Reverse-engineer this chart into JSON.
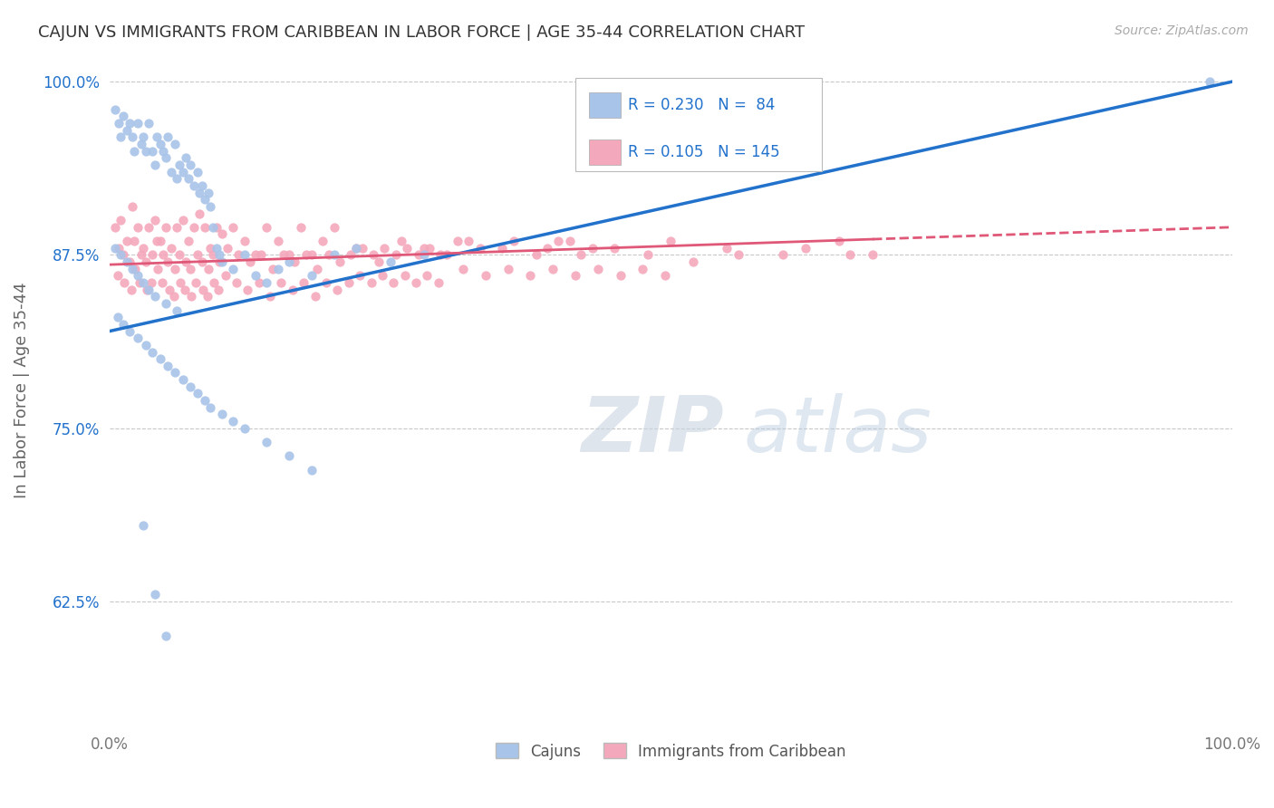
{
  "title": "CAJUN VS IMMIGRANTS FROM CARIBBEAN IN LABOR FORCE | AGE 35-44 CORRELATION CHART",
  "source": "Source: ZipAtlas.com",
  "ylabel": "In Labor Force | Age 35-44",
  "xlim": [
    0.0,
    1.0
  ],
  "ylim": [
    0.535,
    1.02
  ],
  "yticks": [
    0.625,
    0.75,
    0.875,
    1.0
  ],
  "ytick_labels": [
    "62.5%",
    "75.0%",
    "87.5%",
    "100.0%"
  ],
  "legend_R1": "0.230",
  "legend_N1": "84",
  "legend_R2": "0.105",
  "legend_N2": "145",
  "cajun_color": "#a8c4e8",
  "caribbean_color": "#f4a8bc",
  "cajun_line_color": "#2272cc",
  "caribbean_line_color": "#e05878",
  "caribbean_line_dash": true,
  "background_color": "#ffffff",
  "grid_color": "#c8c8c8",
  "watermark_text": "ZIPatlas",
  "cajun_label": "Cajuns",
  "caribbean_label": "Immigrants from Caribbean",
  "cajun_line_x0": 0.0,
  "cajun_line_y0": 0.82,
  "cajun_line_x1": 1.0,
  "cajun_line_y1": 1.0,
  "carib_line_x0": 0.0,
  "carib_line_y0": 0.868,
  "carib_line_x1": 1.0,
  "carib_line_y1": 0.895,
  "cajun_points_x": [
    0.005,
    0.008,
    0.01,
    0.012,
    0.015,
    0.018,
    0.02,
    0.022,
    0.025,
    0.028,
    0.03,
    0.032,
    0.035,
    0.038,
    0.04,
    0.042,
    0.045,
    0.048,
    0.05,
    0.052,
    0.055,
    0.058,
    0.06,
    0.062,
    0.065,
    0.068,
    0.07,
    0.072,
    0.075,
    0.078,
    0.08,
    0.082,
    0.085,
    0.088,
    0.09,
    0.092,
    0.095,
    0.098,
    0.1,
    0.11,
    0.12,
    0.13,
    0.14,
    0.15,
    0.16,
    0.18,
    0.2,
    0.22,
    0.25,
    0.28,
    0.005,
    0.01,
    0.015,
    0.02,
    0.025,
    0.03,
    0.035,
    0.04,
    0.05,
    0.06,
    0.007,
    0.012,
    0.018,
    0.025,
    0.032,
    0.038,
    0.045,
    0.052,
    0.058,
    0.065,
    0.072,
    0.078,
    0.085,
    0.09,
    0.1,
    0.11,
    0.12,
    0.14,
    0.16,
    0.18,
    0.03,
    0.04,
    0.05,
    0.98
  ],
  "cajun_points_y": [
    0.98,
    0.97,
    0.96,
    0.975,
    0.965,
    0.97,
    0.96,
    0.95,
    0.97,
    0.955,
    0.96,
    0.95,
    0.97,
    0.95,
    0.94,
    0.96,
    0.955,
    0.95,
    0.945,
    0.96,
    0.935,
    0.955,
    0.93,
    0.94,
    0.935,
    0.945,
    0.93,
    0.94,
    0.925,
    0.935,
    0.92,
    0.925,
    0.915,
    0.92,
    0.91,
    0.895,
    0.88,
    0.875,
    0.87,
    0.865,
    0.875,
    0.86,
    0.855,
    0.865,
    0.87,
    0.86,
    0.875,
    0.88,
    0.87,
    0.875,
    0.88,
    0.875,
    0.87,
    0.865,
    0.86,
    0.855,
    0.85,
    0.845,
    0.84,
    0.835,
    0.83,
    0.825,
    0.82,
    0.815,
    0.81,
    0.805,
    0.8,
    0.795,
    0.79,
    0.785,
    0.78,
    0.775,
    0.77,
    0.765,
    0.76,
    0.755,
    0.75,
    0.74,
    0.73,
    0.72,
    0.68,
    0.63,
    0.6,
    1.0
  ],
  "carib_points_x": [
    0.005,
    0.01,
    0.015,
    0.02,
    0.025,
    0.03,
    0.035,
    0.04,
    0.045,
    0.05,
    0.055,
    0.06,
    0.065,
    0.07,
    0.075,
    0.08,
    0.085,
    0.09,
    0.095,
    0.1,
    0.11,
    0.12,
    0.13,
    0.14,
    0.15,
    0.16,
    0.17,
    0.18,
    0.19,
    0.2,
    0.22,
    0.24,
    0.26,
    0.28,
    0.3,
    0.32,
    0.35,
    0.38,
    0.4,
    0.42,
    0.45,
    0.48,
    0.5,
    0.55,
    0.6,
    0.65,
    0.68,
    0.008,
    0.012,
    0.018,
    0.022,
    0.028,
    0.032,
    0.038,
    0.042,
    0.048,
    0.052,
    0.058,
    0.062,
    0.068,
    0.072,
    0.078,
    0.082,
    0.088,
    0.092,
    0.098,
    0.105,
    0.115,
    0.125,
    0.135,
    0.145,
    0.155,
    0.165,
    0.175,
    0.185,
    0.195,
    0.205,
    0.215,
    0.225,
    0.235,
    0.245,
    0.255,
    0.265,
    0.275,
    0.285,
    0.295,
    0.31,
    0.33,
    0.36,
    0.39,
    0.41,
    0.43,
    0.007,
    0.013,
    0.019,
    0.023,
    0.027,
    0.033,
    0.037,
    0.043,
    0.047,
    0.053,
    0.057,
    0.063,
    0.067,
    0.073,
    0.077,
    0.083,
    0.087,
    0.093,
    0.097,
    0.103,
    0.113,
    0.123,
    0.133,
    0.143,
    0.153,
    0.163,
    0.173,
    0.183,
    0.193,
    0.203,
    0.213,
    0.223,
    0.233,
    0.243,
    0.253,
    0.263,
    0.273,
    0.283,
    0.293,
    0.315,
    0.335,
    0.355,
    0.375,
    0.395,
    0.415,
    0.435,
    0.455,
    0.475,
    0.495,
    0.52,
    0.56,
    0.62,
    0.66
  ],
  "carib_points_y": [
    0.895,
    0.9,
    0.885,
    0.91,
    0.895,
    0.88,
    0.895,
    0.9,
    0.885,
    0.895,
    0.88,
    0.895,
    0.9,
    0.885,
    0.895,
    0.905,
    0.895,
    0.88,
    0.895,
    0.89,
    0.895,
    0.885,
    0.875,
    0.895,
    0.885,
    0.875,
    0.895,
    0.875,
    0.885,
    0.895,
    0.88,
    0.87,
    0.885,
    0.88,
    0.875,
    0.885,
    0.88,
    0.875,
    0.885,
    0.875,
    0.88,
    0.875,
    0.885,
    0.88,
    0.875,
    0.885,
    0.875,
    0.88,
    0.875,
    0.87,
    0.885,
    0.875,
    0.87,
    0.875,
    0.885,
    0.875,
    0.87,
    0.865,
    0.875,
    0.87,
    0.865,
    0.875,
    0.87,
    0.865,
    0.875,
    0.87,
    0.88,
    0.875,
    0.87,
    0.875,
    0.865,
    0.875,
    0.87,
    0.875,
    0.865,
    0.875,
    0.87,
    0.875,
    0.88,
    0.875,
    0.88,
    0.875,
    0.88,
    0.875,
    0.88,
    0.875,
    0.885,
    0.88,
    0.885,
    0.88,
    0.885,
    0.88,
    0.86,
    0.855,
    0.85,
    0.865,
    0.855,
    0.85,
    0.855,
    0.865,
    0.855,
    0.85,
    0.845,
    0.855,
    0.85,
    0.845,
    0.855,
    0.85,
    0.845,
    0.855,
    0.85,
    0.86,
    0.855,
    0.85,
    0.855,
    0.845,
    0.855,
    0.85,
    0.855,
    0.845,
    0.855,
    0.85,
    0.855,
    0.86,
    0.855,
    0.86,
    0.855,
    0.86,
    0.855,
    0.86,
    0.855,
    0.865,
    0.86,
    0.865,
    0.86,
    0.865,
    0.86,
    0.865,
    0.86,
    0.865,
    0.86,
    0.87,
    0.875,
    0.88,
    0.875
  ]
}
